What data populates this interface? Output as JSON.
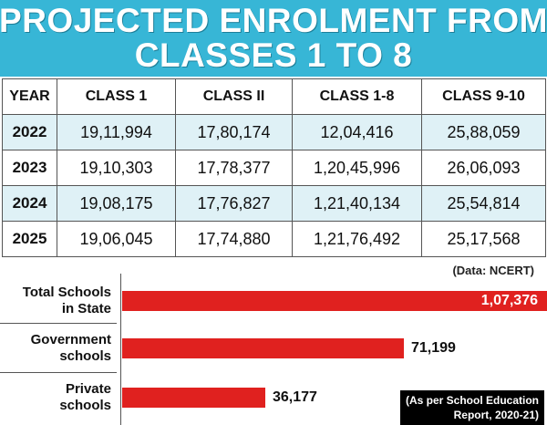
{
  "header": {
    "title_line1": "PROJECTED ENROLMENT FROM",
    "title_line2": "CLASSES 1 TO 8"
  },
  "table": {
    "headers": [
      "YEAR",
      "CLASS 1",
      "CLASS II",
      "CLASS 1-8",
      "CLASS 9-10"
    ],
    "rows": [
      [
        "2022",
        "19,11,994",
        "17,80,174",
        "12,04,416",
        "25,88,059"
      ],
      [
        "2023",
        "19,10,303",
        "17,78,377",
        "1,20,45,996",
        "26,06,093"
      ],
      [
        "2024",
        "19,08,175",
        "17,76,827",
        "1,21,40,134",
        "25,54,814"
      ],
      [
        "2025",
        "19,06,045",
        "17,74,880",
        "1,21,76,492",
        "25,17,568"
      ]
    ]
  },
  "source": "(Data: NCERT)",
  "chart_data": {
    "type": "bar",
    "orientation": "horizontal",
    "categories": [
      "Total Schools in State",
      "Government schools",
      "Private schools"
    ],
    "category_lines": [
      [
        "Total Schools",
        "in State"
      ],
      [
        "Government",
        "schools"
      ],
      [
        "Private",
        "schools"
      ]
    ],
    "values": [
      107376,
      71199,
      36177
    ],
    "value_labels": [
      "1,07,376",
      "71,199",
      "36,177"
    ],
    "bar_color": "#e0211f"
  },
  "note": {
    "line1": "(As per School Education",
    "line2": "Report, 2020-21)"
  },
  "colors": {
    "header_bg": "#37b6d6",
    "shaded_row": "#dff1f6"
  }
}
